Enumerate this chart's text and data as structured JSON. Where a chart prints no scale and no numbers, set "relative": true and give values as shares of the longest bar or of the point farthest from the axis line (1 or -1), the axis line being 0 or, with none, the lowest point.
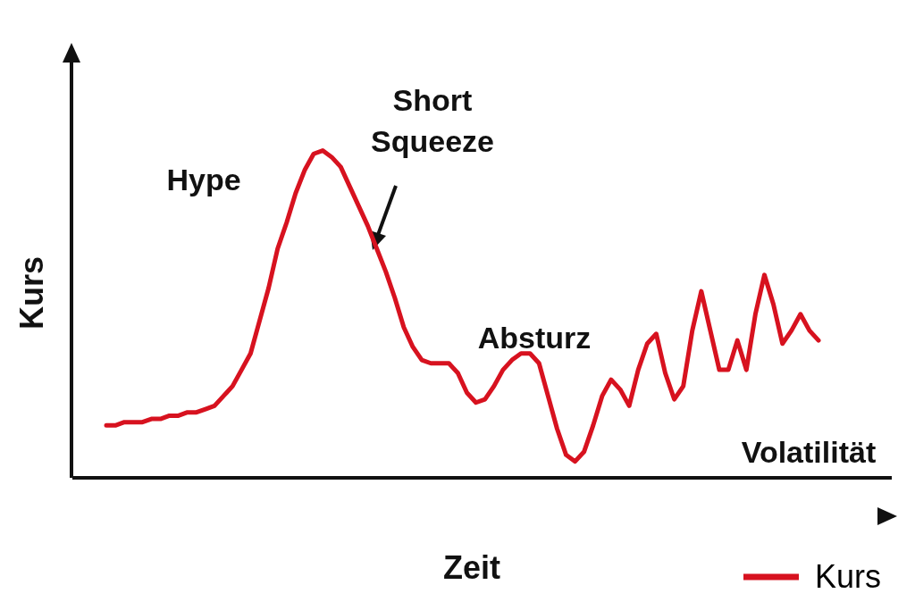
{
  "chart_data": {
    "type": "line",
    "relative": true,
    "xlabel": "Zeit",
    "ylabel": "Kurs",
    "legend": "bottom right",
    "marker": "none",
    "line_style": "solid",
    "annotations": [
      "Hype",
      "Short Squeeze",
      "Absturz",
      "Volatilität"
    ],
    "categories": [
      null,
      null,
      null,
      null,
      null,
      null,
      null,
      null,
      null,
      null,
      null,
      null,
      null,
      null,
      null,
      null,
      null,
      null,
      null,
      null,
      null,
      null,
      null,
      null,
      null,
      null,
      null,
      null,
      null,
      null,
      null,
      null,
      null,
      null,
      null,
      null,
      null,
      null,
      null,
      null,
      null,
      null,
      null,
      null,
      null,
      null,
      null,
      null,
      null,
      null,
      null,
      null,
      null,
      null,
      null,
      null,
      null,
      null,
      null,
      null,
      null,
      null,
      null,
      null,
      null,
      null,
      null,
      null,
      null,
      null,
      null,
      null,
      null,
      null,
      null,
      null,
      null,
      null,
      null,
      null
    ],
    "series": [
      {
        "name": "Kurs",
        "color": "#d7121f",
        "values": [
          0.16,
          0.16,
          0.17,
          0.17,
          0.17,
          0.18,
          0.18,
          0.19,
          0.19,
          0.2,
          0.2,
          0.21,
          0.22,
          0.25,
          0.28,
          0.33,
          0.38,
          0.48,
          0.58,
          0.7,
          0.78,
          0.87,
          0.94,
          0.99,
          1,
          0.98,
          0.95,
          0.89,
          0.83,
          0.77,
          0.7,
          0.63,
          0.55,
          0.46,
          0.4,
          0.36,
          0.35,
          0.35,
          0.35,
          0.32,
          0.26,
          0.23,
          0.24,
          0.28,
          0.33,
          0.36,
          0.38,
          0.38,
          0.35,
          0.25,
          0.15,
          0.07,
          0.05,
          0.08,
          0.16,
          0.25,
          0.3,
          0.27,
          0.22,
          0.33,
          0.41,
          0.44,
          0.32,
          0.24,
          0.28,
          0.45,
          0.57,
          0.45,
          0.33,
          0.33,
          0.42,
          0.33,
          0.5,
          0.62,
          0.53,
          0.41,
          0.45,
          0.5,
          0.45,
          0.42
        ]
      }
    ]
  }
}
